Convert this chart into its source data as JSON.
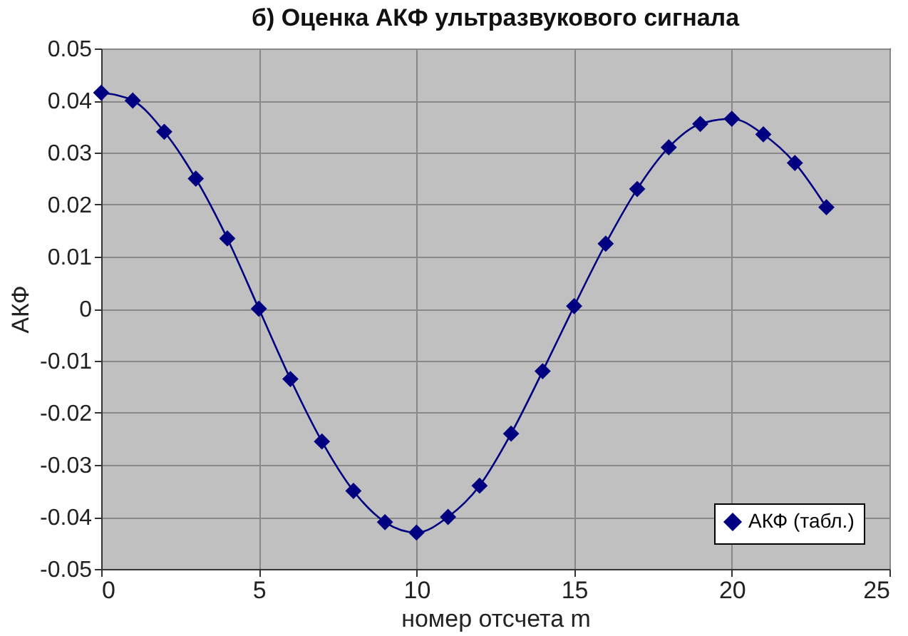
{
  "chart_data": {
    "type": "line",
    "title": "б) Оценка АКФ ультразвукового сигнала",
    "xlabel": "номер отсчета m",
    "ylabel": "АКФ",
    "x": [
      0,
      1,
      2,
      3,
      4,
      5,
      6,
      7,
      8,
      9,
      10,
      11,
      12,
      13,
      14,
      15,
      16,
      17,
      18,
      19,
      20,
      21,
      22,
      23
    ],
    "series": [
      {
        "name": "АКФ (табл.)",
        "color": "#000080",
        "values": [
          0.0415,
          0.04,
          0.034,
          0.025,
          0.0135,
          0.0,
          -0.0135,
          -0.0255,
          -0.035,
          -0.041,
          -0.043,
          -0.04,
          -0.034,
          -0.024,
          -0.012,
          0.0005,
          0.0125,
          0.023,
          0.031,
          0.0355,
          0.0365,
          0.0335,
          0.028,
          0.0195
        ]
      }
    ],
    "xlim": [
      0,
      25
    ],
    "xticks": [
      0,
      5,
      10,
      15,
      20,
      25
    ],
    "ylim": [
      -0.05,
      0.05
    ],
    "yticks": [
      -0.05,
      -0.04,
      -0.03,
      -0.02,
      -0.01,
      0,
      0.01,
      0.02,
      0.03,
      0.04,
      0.05
    ],
    "grid": true,
    "legend": "bottom right",
    "marker": "diamond",
    "line_style": "solid"
  }
}
